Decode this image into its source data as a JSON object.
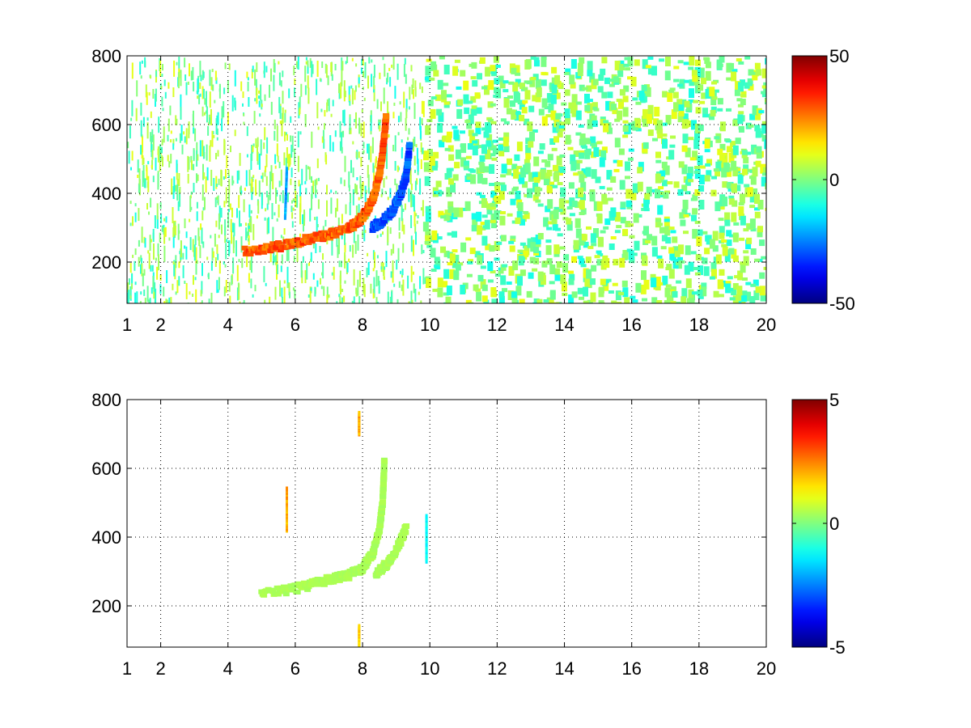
{
  "chart_data": [
    {
      "type": "heatmap",
      "title": "",
      "xlabel": "",
      "ylabel": "",
      "xlim": [
        1,
        20
      ],
      "ylim": [
        80,
        800
      ],
      "x_ticks": [
        1,
        2,
        4,
        6,
        8,
        10,
        12,
        14,
        16,
        18,
        20
      ],
      "x_tick_labels": [
        "1",
        "2",
        "4",
        "6",
        "8",
        "10",
        "12",
        "14",
        "16",
        "18",
        "20"
      ],
      "y_ticks": [
        200,
        400,
        600,
        800
      ],
      "y_tick_labels": [
        "200",
        "400",
        "600",
        "800"
      ],
      "grid": true,
      "grid_style": "dotted",
      "colormap": "jet",
      "clim": [
        -50,
        50
      ],
      "colorbar_tick_labels": [
        "50",
        "0",
        "-50"
      ],
      "features": [
        {
          "kind": "positive ridge",
          "points": [
            [
              4.5,
              230
            ],
            [
              5.5,
              245
            ],
            [
              6.5,
              268
            ],
            [
              7.2,
              285
            ],
            [
              7.7,
              305
            ],
            [
              8.0,
              330
            ],
            [
              8.3,
              380
            ],
            [
              8.5,
              450
            ],
            [
              8.6,
              520
            ],
            [
              8.7,
              620
            ]
          ],
          "value": 35
        },
        {
          "kind": "negative ridge",
          "points": [
            [
              8.3,
              300
            ],
            [
              8.6,
              320
            ],
            [
              8.9,
              350
            ],
            [
              9.1,
              390
            ],
            [
              9.3,
              450
            ],
            [
              9.4,
              540
            ]
          ],
          "value": -35
        },
        {
          "kind": "negative streak",
          "points": [
            [
              5.7,
              330
            ],
            [
              5.75,
              470
            ]
          ],
          "value": -25
        }
      ]
    },
    {
      "type": "heatmap",
      "title": "",
      "xlabel": "",
      "ylabel": "",
      "xlim": [
        1,
        20
      ],
      "ylim": [
        80,
        800
      ],
      "x_ticks": [
        1,
        2,
        4,
        6,
        8,
        10,
        12,
        14,
        16,
        18,
        20
      ],
      "x_tick_labels": [
        "1",
        "2",
        "4",
        "6",
        "8",
        "10",
        "12",
        "14",
        "16",
        "18",
        "20"
      ],
      "y_ticks": [
        200,
        400,
        600,
        800
      ],
      "y_tick_labels": [
        "200",
        "400",
        "600",
        "800"
      ],
      "grid": true,
      "grid_style": "dotted",
      "colormap": "jet",
      "clim": [
        -5,
        5
      ],
      "colorbar_tick_labels": [
        "5",
        "0",
        "-5"
      ],
      "features": [
        {
          "kind": "ridge",
          "points": [
            [
              5.0,
              235
            ],
            [
              6.0,
              250
            ],
            [
              7.0,
              275
            ],
            [
              7.6,
              290
            ],
            [
              8.0,
              310
            ],
            [
              8.3,
              350
            ],
            [
              8.5,
              420
            ],
            [
              8.6,
              500
            ],
            [
              8.65,
              630
            ]
          ],
          "value": 0.5
        },
        {
          "kind": "ridge",
          "points": [
            [
              8.4,
              290
            ],
            [
              8.8,
              330
            ],
            [
              9.1,
              380
            ],
            [
              9.3,
              430
            ]
          ],
          "value": 0.5
        },
        {
          "kind": "streak",
          "points": [
            [
              5.75,
              420
            ],
            [
              5.75,
              540
            ]
          ],
          "value": 2.5
        },
        {
          "kind": "streak",
          "points": [
            [
              7.9,
              700
            ],
            [
              7.9,
              760
            ]
          ],
          "value": 2.5
        },
        {
          "kind": "streak",
          "points": [
            [
              9.9,
              330
            ],
            [
              9.9,
              460
            ]
          ],
          "value": -1.5
        },
        {
          "kind": "streak",
          "points": [
            [
              7.9,
              80
            ],
            [
              7.9,
              140
            ]
          ],
          "value": 2.0
        }
      ]
    }
  ]
}
